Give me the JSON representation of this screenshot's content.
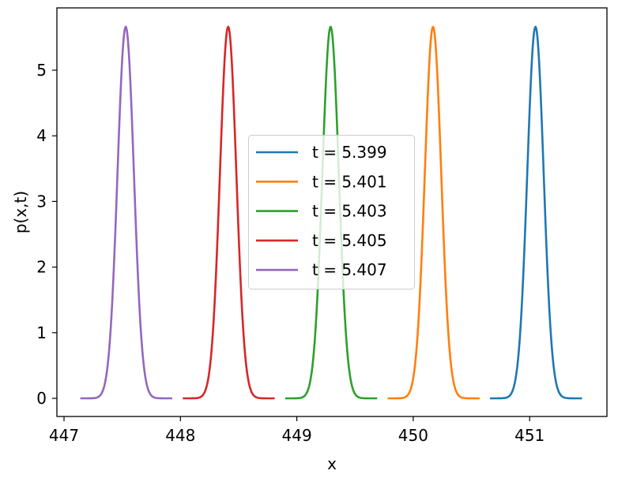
{
  "chart_data": {
    "type": "line",
    "title": "",
    "xlabel": "x",
    "ylabel": "p(x,t)",
    "xlim": [
      446.94,
      451.59
    ],
    "ylim": [
      -0.28,
      5.95
    ],
    "xticks": [
      447,
      448,
      449,
      450,
      451
    ],
    "yticks": [
      0,
      1,
      2,
      3,
      4,
      5
    ],
    "grid": false,
    "legend_position": "center",
    "series": [
      {
        "name": "t = 5.399",
        "color": "#1f77b4",
        "center": 451.05,
        "sigma": 0.0705,
        "peak": 5.66,
        "x_range": [
          450.66,
          451.45
        ]
      },
      {
        "name": "t = 5.401",
        "color": "#ff7f0e",
        "center": 450.17,
        "sigma": 0.0705,
        "peak": 5.66,
        "x_range": [
          449.78,
          450.57
        ]
      },
      {
        "name": "t = 5.403",
        "color": "#2ca02c",
        "center": 449.29,
        "sigma": 0.0705,
        "peak": 5.66,
        "x_range": [
          448.9,
          449.69
        ]
      },
      {
        "name": "t = 5.405",
        "color": "#d62728",
        "center": 448.41,
        "sigma": 0.0705,
        "peak": 5.66,
        "x_range": [
          448.02,
          448.81
        ]
      },
      {
        "name": "t = 5.407",
        "color": "#9467bd",
        "center": 447.53,
        "sigma": 0.0705,
        "peak": 5.66,
        "x_range": [
          447.14,
          447.93
        ]
      }
    ]
  }
}
